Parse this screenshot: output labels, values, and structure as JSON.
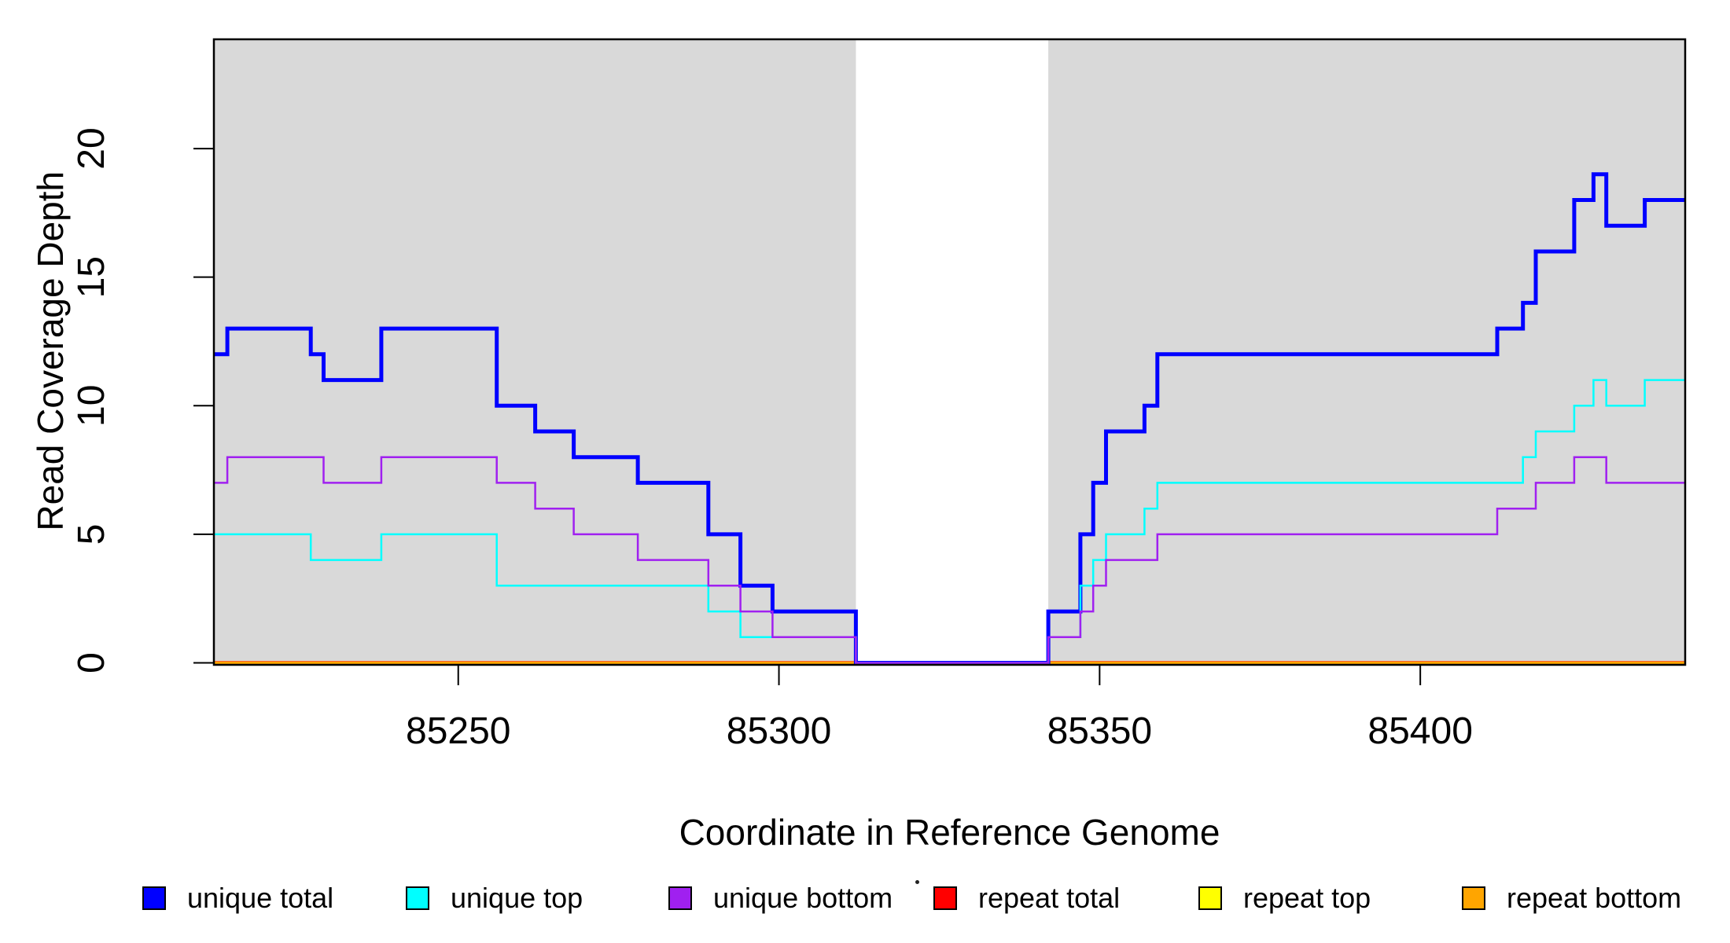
{
  "chart_data": {
    "type": "line",
    "subtype": "step-coverage-plot",
    "title": "",
    "xlabel": "Coordinate in Reference Genome",
    "ylabel": "Read Coverage Depth",
    "x_domain": [
      85211.9,
      85441.3
    ],
    "y_domain_top": 24.25,
    "x_ticks": [
      85250,
      85300,
      85350,
      85400
    ],
    "y_ticks": [
      0,
      5,
      10,
      15,
      20
    ],
    "grid": "off",
    "band_color": "#D9D9D9",
    "background_bands": [
      [
        85211.9,
        85312
      ],
      [
        85342,
        85441.3
      ]
    ],
    "gap_region": [
      85312,
      85342
    ],
    "series": [
      {
        "name": "repeat total",
        "color": "#FF0000",
        "width": 4.5,
        "steps": [
          [
            85211.9,
            0
          ]
        ]
      },
      {
        "name": "repeat top",
        "color": "#FFFF00",
        "width": 2.5,
        "steps": [
          [
            85211.9,
            0
          ]
        ]
      },
      {
        "name": "repeat bottom",
        "color": "#FFA500",
        "width": 3.5,
        "steps": [
          [
            85211.9,
            0
          ]
        ]
      },
      {
        "name": "unique total",
        "color": "#0000FF",
        "width": 5,
        "steps": [
          [
            85211.9,
            12
          ],
          [
            85214,
            13
          ],
          [
            85227,
            12
          ],
          [
            85229,
            11
          ],
          [
            85238,
            13
          ],
          [
            85256,
            10
          ],
          [
            85262,
            9
          ],
          [
            85268,
            8
          ],
          [
            85278,
            7
          ],
          [
            85289,
            5
          ],
          [
            85294,
            3
          ],
          [
            85299,
            2
          ],
          [
            85312,
            0
          ],
          [
            85342,
            2
          ],
          [
            85347,
            5
          ],
          [
            85349,
            7
          ],
          [
            85351,
            9
          ],
          [
            85357,
            10
          ],
          [
            85359,
            12
          ],
          [
            85412,
            13
          ],
          [
            85416,
            14
          ],
          [
            85418,
            16
          ],
          [
            85424,
            18
          ],
          [
            85427,
            19
          ],
          [
            85429,
            17
          ],
          [
            85435,
            18
          ]
        ]
      },
      {
        "name": "unique top",
        "color": "#00FFFF",
        "width": 2.5,
        "steps": [
          [
            85211.9,
            5
          ],
          [
            85227,
            4
          ],
          [
            85238,
            5
          ],
          [
            85256,
            3
          ],
          [
            85289,
            2
          ],
          [
            85294,
            1
          ],
          [
            85312,
            0
          ],
          [
            85342,
            1
          ],
          [
            85347,
            3
          ],
          [
            85349,
            4
          ],
          [
            85351,
            5
          ],
          [
            85357,
            6
          ],
          [
            85359,
            7
          ],
          [
            85416,
            8
          ],
          [
            85418,
            9
          ],
          [
            85424,
            10
          ],
          [
            85427,
            11
          ],
          [
            85429,
            10
          ],
          [
            85435,
            11
          ]
        ]
      },
      {
        "name": "unique bottom",
        "color": "#A020F0",
        "width": 2.5,
        "steps": [
          [
            85211.9,
            7
          ],
          [
            85214,
            8
          ],
          [
            85229,
            7
          ],
          [
            85238,
            8
          ],
          [
            85256,
            7
          ],
          [
            85262,
            6
          ],
          [
            85268,
            5
          ],
          [
            85278,
            4
          ],
          [
            85289,
            3
          ],
          [
            85294,
            2
          ],
          [
            85299,
            1
          ],
          [
            85312,
            0
          ],
          [
            85342,
            1
          ],
          [
            85347,
            2
          ],
          [
            85349,
            3
          ],
          [
            85351,
            4
          ],
          [
            85359,
            5
          ],
          [
            85412,
            6
          ],
          [
            85418,
            7
          ],
          [
            85424,
            8
          ],
          [
            85429,
            7
          ]
        ]
      }
    ],
    "legend": [
      {
        "label": "unique total",
        "color": "#0000FF"
      },
      {
        "label": "unique top",
        "color": "#00FFFF"
      },
      {
        "label": "unique bottom",
        "color": "#A020F0"
      },
      {
        "label": "repeat total",
        "color": "#FF0000"
      },
      {
        "label": "repeat top",
        "color": "#FFFF00"
      },
      {
        "label": "repeat bottom",
        "color": "#FFA500"
      }
    ],
    "legend_position": "bottom"
  }
}
